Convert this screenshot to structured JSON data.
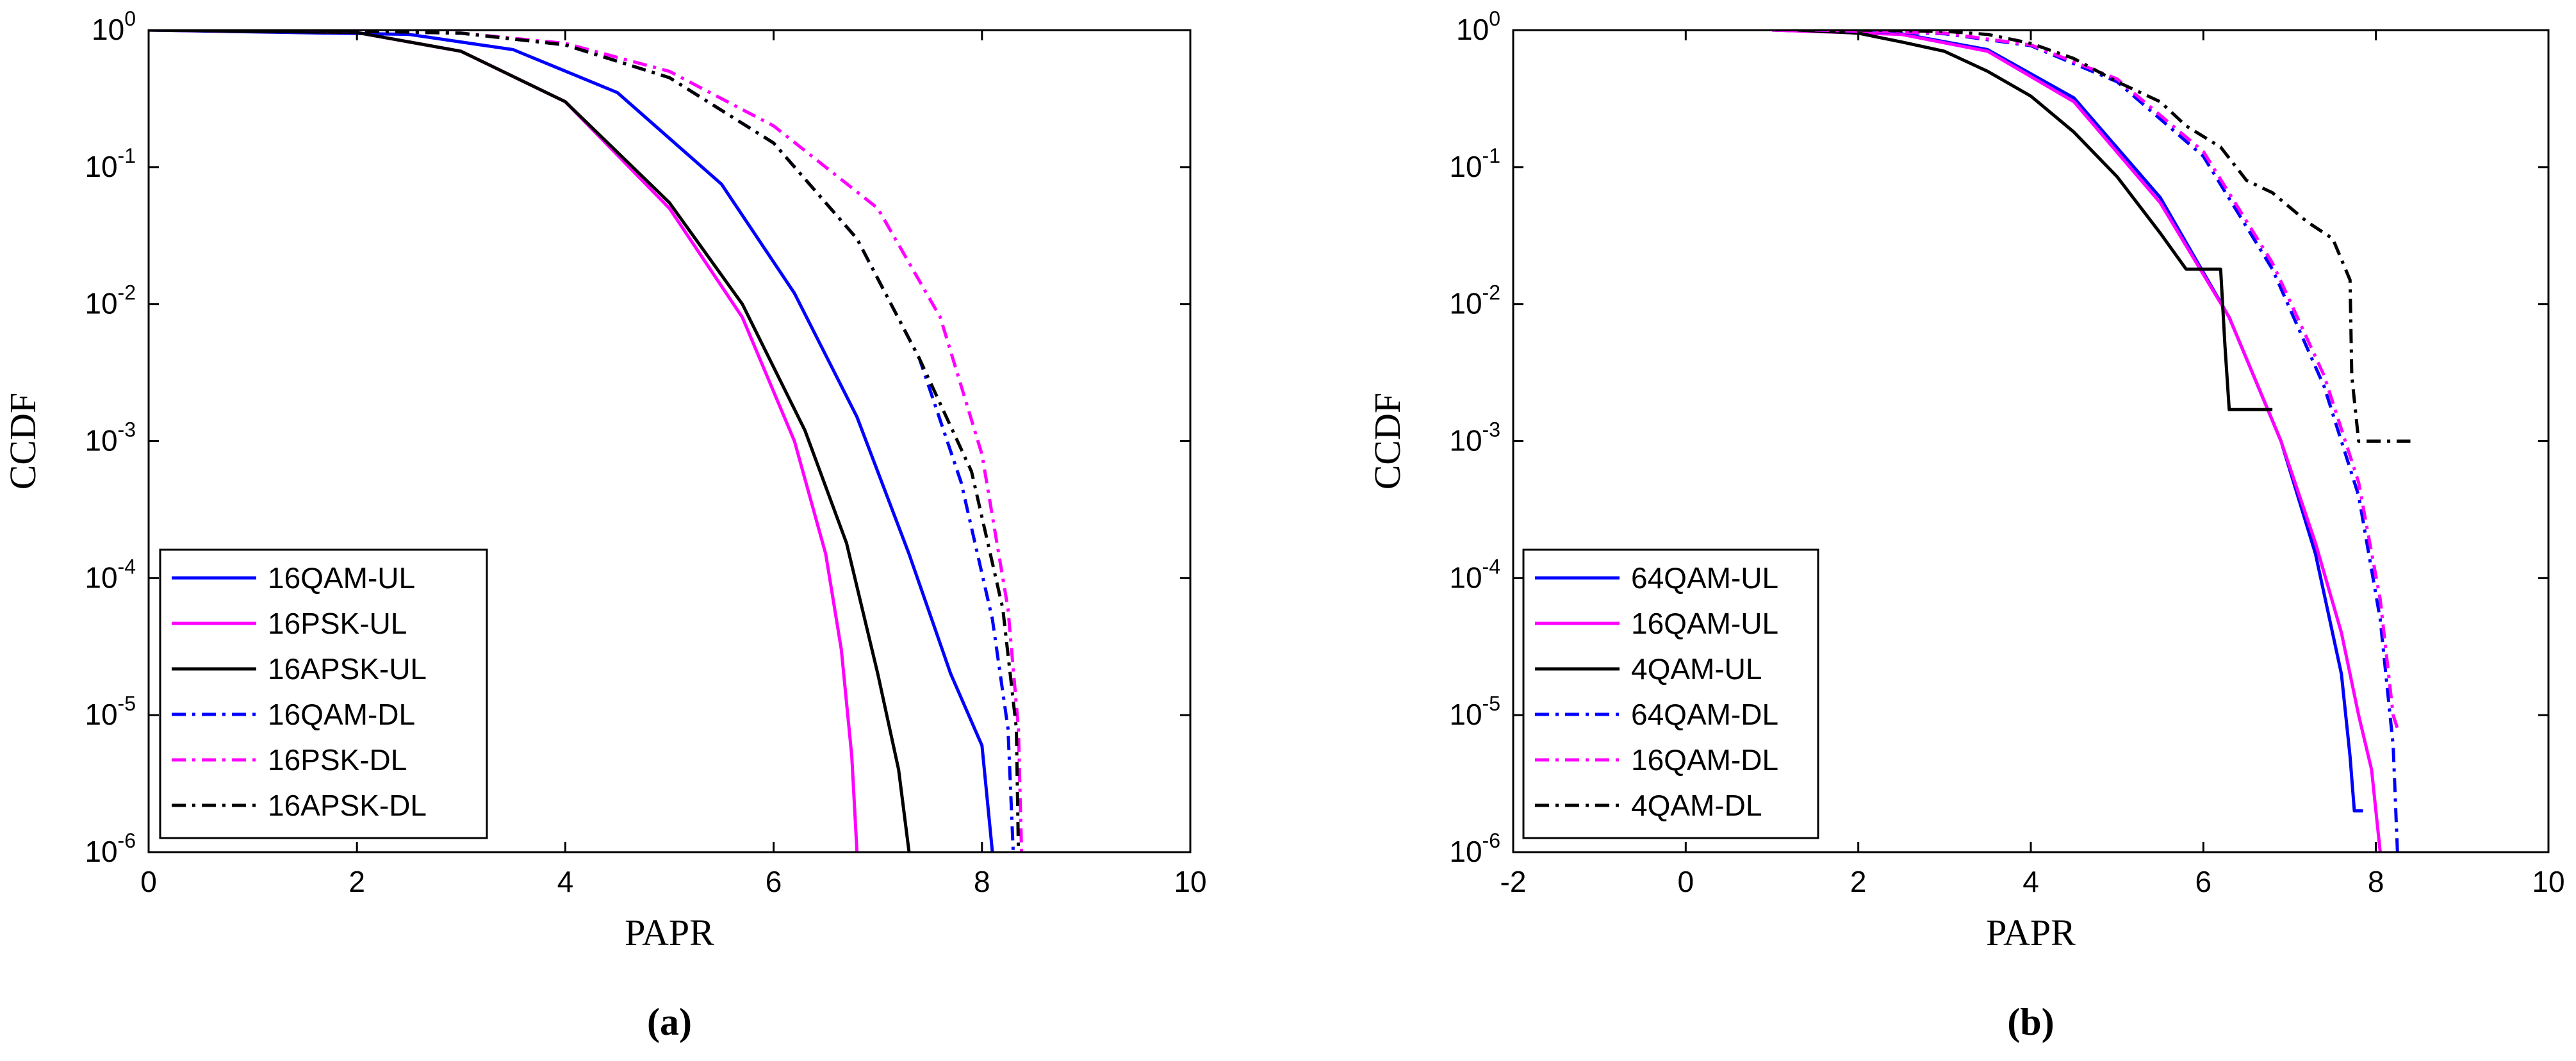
{
  "chart_data": [
    {
      "type": "line",
      "panel_label": "(a)",
      "xlabel": "PAPR",
      "ylabel": "CCDF",
      "xlim": [
        0,
        10
      ],
      "ylim": [
        1e-06,
        1
      ],
      "yscale": "log",
      "xticks": [
        "0",
        "2",
        "4",
        "6",
        "8",
        "10"
      ],
      "yticks": [
        {
          "base": "10",
          "exp": "0"
        },
        {
          "base": "10",
          "exp": "-1"
        },
        {
          "base": "10",
          "exp": "-2"
        },
        {
          "base": "10",
          "exp": "-3"
        },
        {
          "base": "10",
          "exp": "-4"
        },
        {
          "base": "10",
          "exp": "-5"
        },
        {
          "base": "10",
          "exp": "-6"
        }
      ],
      "legend_position": "bottom-left",
      "series": [
        {
          "name": "16QAM-UL",
          "color": "#0000ff",
          "style": "solid",
          "points": [
            [
              0,
              1
            ],
            [
              2.5,
              0.93
            ],
            [
              3.5,
              0.72
            ],
            [
              4.5,
              0.35
            ],
            [
              5.5,
              0.075
            ],
            [
              6.2,
              0.012
            ],
            [
              6.8,
              0.0015
            ],
            [
              7.3,
              0.00015
            ],
            [
              7.7,
              2e-05
            ],
            [
              8.0,
              6e-06
            ],
            [
              8.1,
              1e-06
            ]
          ]
        },
        {
          "name": "16PSK-UL",
          "color": "#ff00ff",
          "style": "solid",
          "points": [
            [
              0,
              1
            ],
            [
              2,
              0.96
            ],
            [
              3,
              0.7
            ],
            [
              4,
              0.3
            ],
            [
              5,
              0.05
            ],
            [
              5.7,
              0.008
            ],
            [
              6.2,
              0.001
            ],
            [
              6.5,
              0.00015
            ],
            [
              6.65,
              3e-05
            ],
            [
              6.75,
              5e-06
            ],
            [
              6.8,
              1e-06
            ]
          ]
        },
        {
          "name": "16APSK-UL",
          "color": "#000000",
          "style": "solid",
          "points": [
            [
              0,
              1
            ],
            [
              2,
              0.96
            ],
            [
              3,
              0.7
            ],
            [
              4,
              0.3
            ],
            [
              5,
              0.055
            ],
            [
              5.7,
              0.01
            ],
            [
              6.3,
              0.0012
            ],
            [
              6.7,
              0.00018
            ],
            [
              7.0,
              2e-05
            ],
            [
              7.2,
              4e-06
            ],
            [
              7.3,
              1e-06
            ]
          ]
        },
        {
          "name": "16QAM-DL",
          "color": "#0000ff",
          "style": "dashdot",
          "points": [
            [
              1.5,
              1
            ],
            [
              3,
              0.95
            ],
            [
              4,
              0.78
            ],
            [
              5,
              0.45
            ],
            [
              6,
              0.15
            ],
            [
              6.8,
              0.03
            ],
            [
              7.4,
              0.004
            ],
            [
              7.8,
              0.0005
            ],
            [
              8.1,
              5e-05
            ],
            [
              8.25,
              8e-06
            ],
            [
              8.3,
              1e-06
            ]
          ]
        },
        {
          "name": "16PSK-DL",
          "color": "#ff00ff",
          "style": "dashdot",
          "points": [
            [
              1.5,
              1
            ],
            [
              3,
              0.95
            ],
            [
              4,
              0.8
            ],
            [
              5,
              0.5
            ],
            [
              6,
              0.2
            ],
            [
              7,
              0.05
            ],
            [
              7.6,
              0.008
            ],
            [
              8.0,
              0.0008
            ],
            [
              8.25,
              6e-05
            ],
            [
              8.35,
              8e-06
            ],
            [
              8.38,
              1e-06
            ]
          ]
        },
        {
          "name": "16APSK-DL",
          "color": "#000000",
          "style": "dashdot",
          "points": [
            [
              1.5,
              1
            ],
            [
              3,
              0.95
            ],
            [
              4,
              0.78
            ],
            [
              5,
              0.45
            ],
            [
              6,
              0.15
            ],
            [
              6.8,
              0.03
            ],
            [
              7.4,
              0.004
            ],
            [
              7.9,
              0.0006
            ],
            [
              8.2,
              6e-05
            ],
            [
              8.33,
              8e-06
            ],
            [
              8.35,
              1e-06
            ]
          ]
        }
      ]
    },
    {
      "type": "line",
      "panel_label": "(b)",
      "xlabel": "PAPR",
      "ylabel": "CCDF",
      "xlim": [
        -2,
        10
      ],
      "ylim": [
        1e-06,
        1
      ],
      "yscale": "log",
      "xticks": [
        "-2",
        "0",
        "2",
        "4",
        "6",
        "8",
        "10"
      ],
      "yticks": [
        {
          "base": "10",
          "exp": "0"
        },
        {
          "base": "10",
          "exp": "-1"
        },
        {
          "base": "10",
          "exp": "-2"
        },
        {
          "base": "10",
          "exp": "-3"
        },
        {
          "base": "10",
          "exp": "-4"
        },
        {
          "base": "10",
          "exp": "-5"
        },
        {
          "base": "10",
          "exp": "-6"
        }
      ],
      "legend_position": "bottom-left",
      "series": [
        {
          "name": "64QAM-UL",
          "color": "#0000ff",
          "style": "solid",
          "points": [
            [
              1,
              1
            ],
            [
              2.5,
              0.94
            ],
            [
              3.5,
              0.72
            ],
            [
              4.5,
              0.32
            ],
            [
              5.5,
              0.06
            ],
            [
              6.3,
              0.008
            ],
            [
              6.9,
              0.001
            ],
            [
              7.3,
              0.00015
            ],
            [
              7.6,
              2e-05
            ],
            [
              7.7,
              5e-06
            ],
            [
              7.75,
              2e-06
            ],
            [
              7.85,
              2e-06
            ]
          ]
        },
        {
          "name": "16QAM-UL",
          "color": "#ff00ff",
          "style": "solid",
          "points": [
            [
              1,
              1
            ],
            [
              2.5,
              0.93
            ],
            [
              3.5,
              0.7
            ],
            [
              4.5,
              0.3
            ],
            [
              5.5,
              0.055
            ],
            [
              6.3,
              0.008
            ],
            [
              6.9,
              0.001
            ],
            [
              7.3,
              0.00018
            ],
            [
              7.6,
              4e-05
            ],
            [
              7.8,
              1e-05
            ],
            [
              7.95,
              4e-06
            ],
            [
              8.05,
              1e-06
            ]
          ]
        },
        {
          "name": "4QAM-UL",
          "color": "#000000",
          "style": "solid",
          "points": [
            [
              1.3,
              1
            ],
            [
              2,
              0.95
            ],
            [
              2.5,
              0.82
            ],
            [
              3,
              0.7
            ],
            [
              3.5,
              0.5
            ],
            [
              4,
              0.33
            ],
            [
              4.5,
              0.18
            ],
            [
              5,
              0.085
            ],
            [
              5.5,
              0.033
            ],
            [
              5.8,
              0.018
            ],
            [
              6.0,
              0.018
            ],
            [
              6.2,
              0.018
            ],
            [
              6.25,
              0.005
            ],
            [
              6.3,
              0.0017
            ],
            [
              6.8,
              0.0017
            ]
          ]
        },
        {
          "name": "64QAM-DL",
          "color": "#0000ff",
          "style": "dashdot",
          "points": [
            [
              1.5,
              1
            ],
            [
              3,
              0.94
            ],
            [
              4,
              0.77
            ],
            [
              5,
              0.42
            ],
            [
              6,
              0.12
            ],
            [
              6.8,
              0.018
            ],
            [
              7.4,
              0.0025
            ],
            [
              7.8,
              0.0004
            ],
            [
              8.05,
              5e-05
            ],
            [
              8.2,
              6e-06
            ],
            [
              8.25,
              1e-06
            ]
          ]
        },
        {
          "name": "16QAM-DL",
          "color": "#ff00ff",
          "style": "dashdot",
          "points": [
            [
              1.5,
              1
            ],
            [
              3,
              0.95
            ],
            [
              4,
              0.78
            ],
            [
              5,
              0.44
            ],
            [
              6,
              0.13
            ],
            [
              6.8,
              0.02
            ],
            [
              7.4,
              0.003
            ],
            [
              7.8,
              0.0005
            ],
            [
              8.05,
              7e-05
            ],
            [
              8.2,
              1e-05
            ],
            [
              8.25,
              8e-06
            ]
          ]
        },
        {
          "name": "4QAM-DL",
          "color": "#000000",
          "style": "dashdot",
          "points": [
            [
              2,
              1
            ],
            [
              3,
              0.98
            ],
            [
              3.5,
              0.93
            ],
            [
              4,
              0.8
            ],
            [
              4.5,
              0.62
            ],
            [
              5,
              0.42
            ],
            [
              5.5,
              0.3
            ],
            [
              5.8,
              0.2
            ],
            [
              6.2,
              0.14
            ],
            [
              6.5,
              0.08
            ],
            [
              6.8,
              0.065
            ],
            [
              7.2,
              0.04
            ],
            [
              7.5,
              0.03
            ],
            [
              7.7,
              0.015
            ],
            [
              7.72,
              0.003
            ],
            [
              7.8,
              0.001
            ],
            [
              8.4,
              0.001
            ]
          ]
        }
      ]
    }
  ]
}
